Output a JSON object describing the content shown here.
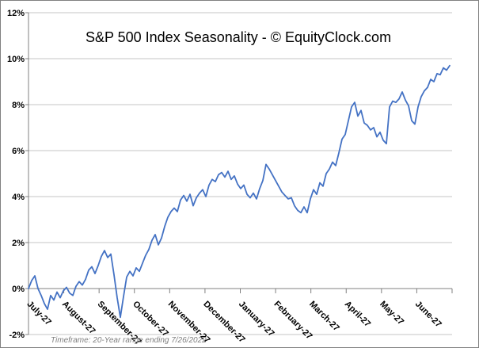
{
  "window": {
    "background": "#ffffff",
    "border_color": "#808080"
  },
  "chart_style": {
    "line_color": "#4472C4",
    "gridline_color": "#c6c6c6",
    "axis_color": "#808080",
    "label_color": "#000000",
    "footnote_color": "#7f7f7f"
  },
  "chart_data": {
    "type": "line",
    "title": "S&P 500 Index Seasonality - © EquityClock.com",
    "annotation": "Timeframe: 20-Year range ending 7/26/2022",
    "unit": "%",
    "grid": true,
    "legend": false,
    "ylim": [
      -2,
      12
    ],
    "y_step": 2,
    "y_tick_labels": [
      "12%",
      "10%",
      "8%",
      "6%",
      "4%",
      "2%",
      "0%",
      "-2%"
    ],
    "x_tick_labels": [
      "July-27",
      "August-27",
      "September-27",
      "October-27",
      "November-27",
      "December-27",
      "January-27",
      "February-27",
      "March-27",
      "April-27",
      "May-27",
      "June-27"
    ],
    "series": [
      {
        "name": "S&P 500 Index Seasonality",
        "values": [
          0.0,
          0.35,
          0.55,
          0.0,
          -0.3,
          -0.65,
          -0.9,
          -0.3,
          -0.5,
          -0.15,
          -0.4,
          -0.1,
          0.05,
          -0.2,
          -0.3,
          0.1,
          0.3,
          0.15,
          0.4,
          0.8,
          0.95,
          0.65,
          1.0,
          1.4,
          1.65,
          1.35,
          1.5,
          0.6,
          -0.4,
          -1.25,
          -0.35,
          0.5,
          0.75,
          0.55,
          0.9,
          0.75,
          1.1,
          1.45,
          1.7,
          2.1,
          2.35,
          1.9,
          2.2,
          2.7,
          3.1,
          3.35,
          3.5,
          3.35,
          3.85,
          4.05,
          3.8,
          4.1,
          3.6,
          3.95,
          4.15,
          4.3,
          4.0,
          4.5,
          4.75,
          4.65,
          4.95,
          5.05,
          4.85,
          5.1,
          4.75,
          4.9,
          4.55,
          4.35,
          4.5,
          4.1,
          3.95,
          4.15,
          3.9,
          4.35,
          4.7,
          5.4,
          5.2,
          4.95,
          4.7,
          4.45,
          4.2,
          4.05,
          3.9,
          3.95,
          3.6,
          3.4,
          3.3,
          3.55,
          3.3,
          3.9,
          4.3,
          4.1,
          4.6,
          4.45,
          5.0,
          5.2,
          5.5,
          5.35,
          5.9,
          6.5,
          6.7,
          7.3,
          7.9,
          8.1,
          7.5,
          7.75,
          7.2,
          7.1,
          6.9,
          7.0,
          6.6,
          6.8,
          6.45,
          6.3,
          7.9,
          8.15,
          8.1,
          8.25,
          8.55,
          8.2,
          7.95,
          7.3,
          7.15,
          7.9,
          8.35,
          8.6,
          8.75,
          9.1,
          9.0,
          9.35,
          9.3,
          9.6,
          9.5,
          9.7
        ]
      }
    ]
  }
}
